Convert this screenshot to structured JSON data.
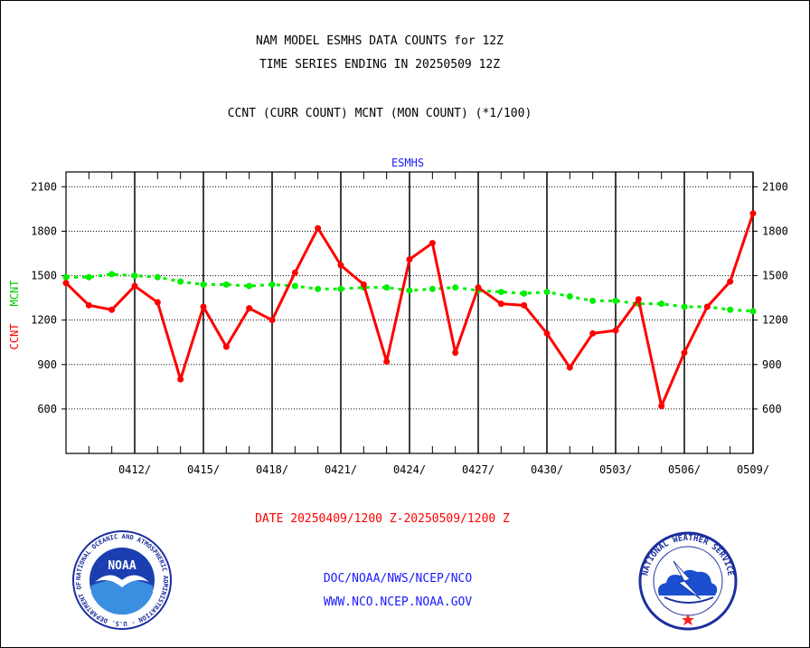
{
  "title": {
    "line1": "NAM MODEL ESMHS DATA COUNTS for 12Z",
    "line2": "TIME SERIES ENDING IN 20250509 12Z",
    "line3": "CCNT (CURR COUNT) MCNT (MON COUNT) (*1/100)"
  },
  "date_range": "DATE 20250409/1200 Z-20250509/1200 Z",
  "footer": {
    "line1": "DOC/NOAA/NWS/NCEP/NCO",
    "line2": "WWW.NCO.NCEP.NOAA.GOV"
  },
  "logos": {
    "left": {
      "name": "noaa-logo",
      "word": "NOAA",
      "ring_text": "NATIONAL OCEANIC AND ATMOSPHERIC ADMINISTRATION · U.S. DEPARTMENT OF COMMERCE"
    },
    "right": {
      "name": "nws-logo",
      "ring_text": "NATIONAL WEATHER SERVICE"
    }
  },
  "colors": {
    "ccnt": "#ff0000",
    "mcnt": "#00ee00",
    "text": "#000000",
    "subtitle": "#1a1aff",
    "date": "#ff0000"
  },
  "chart_data": {
    "type": "line",
    "subtitle": "ESMHS",
    "ylabel_left": [
      "CCNT",
      "MCNT"
    ],
    "ylim": [
      300,
      2200
    ],
    "yticks": [
      600,
      900,
      1200,
      1500,
      1800,
      2100
    ],
    "xlim": [
      0,
      30
    ],
    "xticks": [
      {
        "x": 3,
        "label": "0412/"
      },
      {
        "x": 6,
        "label": "0415/"
      },
      {
        "x": 9,
        "label": "0418/"
      },
      {
        "x": 12,
        "label": "0421/"
      },
      {
        "x": 15,
        "label": "0424/"
      },
      {
        "x": 18,
        "label": "0427/"
      },
      {
        "x": 21,
        "label": "0430/"
      },
      {
        "x": 24,
        "label": "0503/"
      },
      {
        "x": 27,
        "label": "0506/"
      },
      {
        "x": 30,
        "label": "0509/"
      }
    ],
    "x": [
      0,
      1,
      2,
      3,
      4,
      5,
      6,
      7,
      8,
      9,
      10,
      11,
      12,
      13,
      14,
      15,
      16,
      17,
      18,
      19,
      20,
      21,
      22,
      23,
      24,
      25,
      26,
      27,
      28,
      29,
      30
    ],
    "grid": true,
    "series": [
      {
        "name": "CCNT",
        "values": [
          1450,
          1300,
          1270,
          1430,
          1320,
          800,
          1290,
          1020,
          1280,
          1200,
          1520,
          1820,
          1570,
          1440,
          920,
          1610,
          1720,
          980,
          1420,
          1310,
          1300,
          1110,
          880,
          1110,
          1130,
          1340,
          620,
          980,
          1290,
          1460,
          1920
        ]
      },
      {
        "name": "MCNT",
        "values": [
          1490,
          1490,
          1510,
          1500,
          1490,
          1460,
          1440,
          1440,
          1430,
          1440,
          1430,
          1410,
          1410,
          1420,
          1420,
          1400,
          1410,
          1420,
          1400,
          1390,
          1380,
          1390,
          1360,
          1330,
          1330,
          1310,
          1310,
          1290,
          1290,
          1270,
          1260
        ]
      }
    ]
  }
}
